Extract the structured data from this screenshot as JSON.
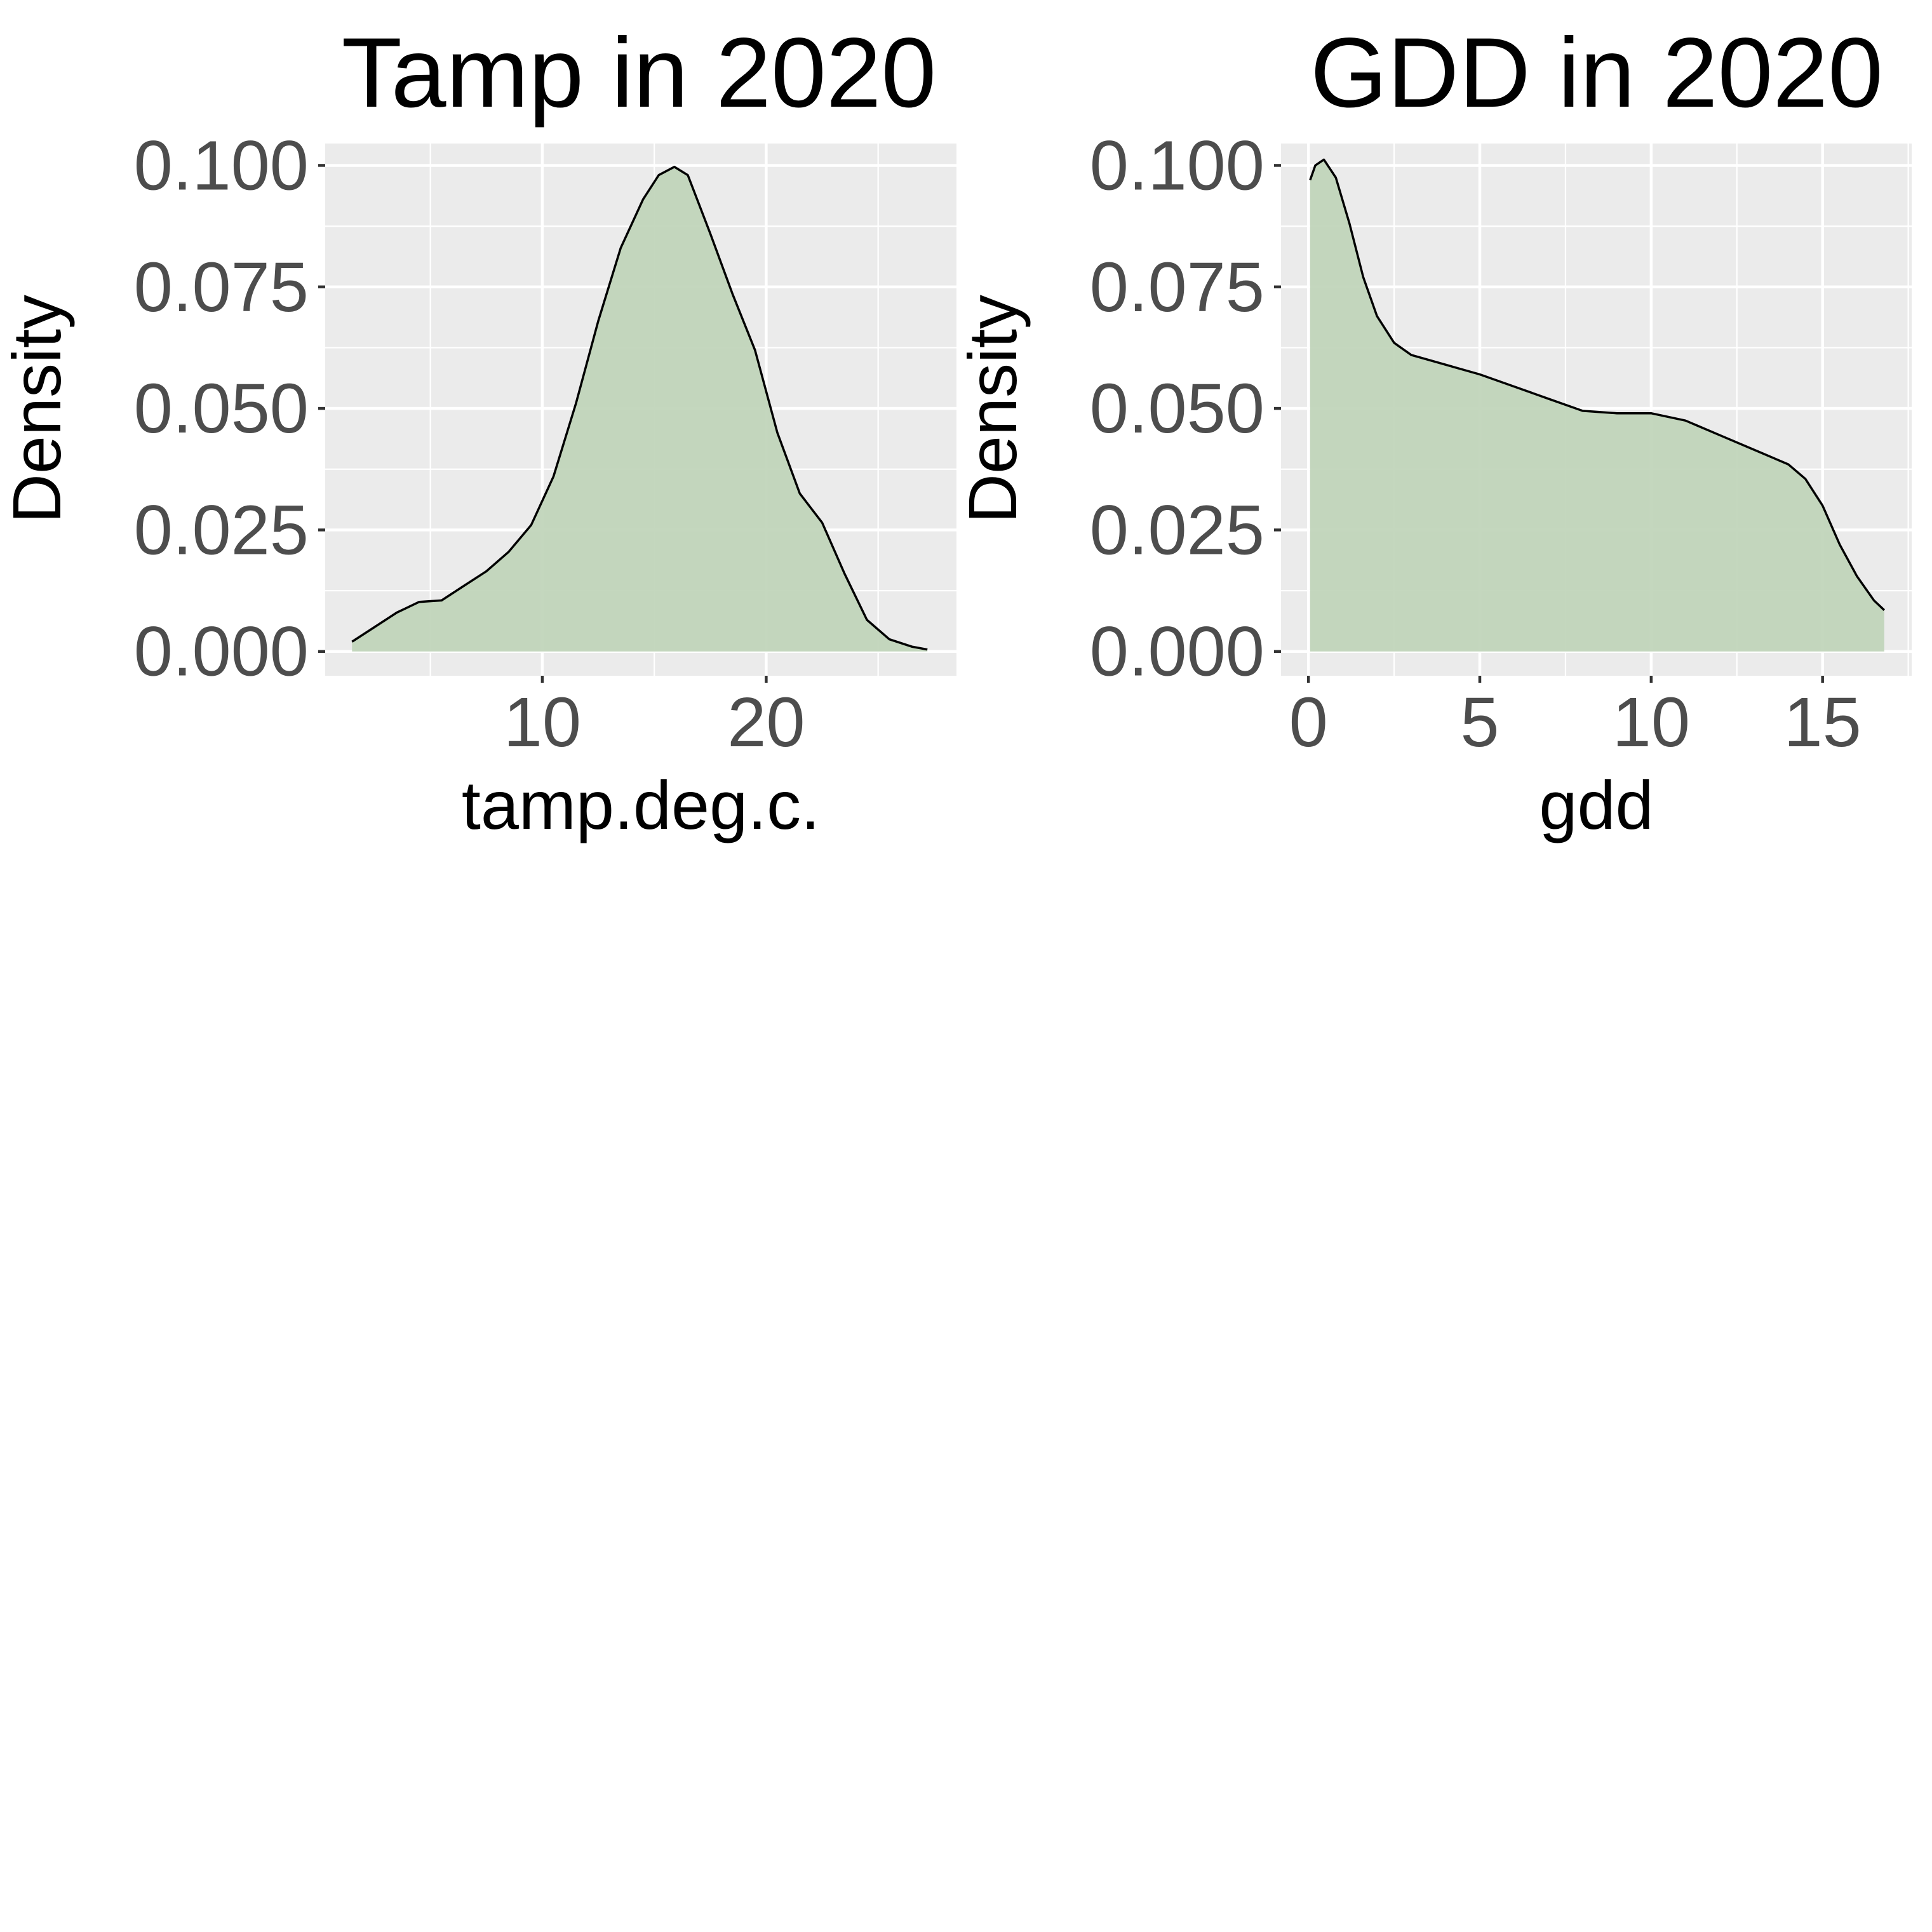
{
  "colors": {
    "fill": "#bfd4b8",
    "panel_background": "#ebebeb",
    "grid": "#ffffff",
    "line": "#000000",
    "tick_text": "#4d4d4d"
  },
  "chart_data": [
    {
      "type": "area",
      "title": "Tamp in 2020",
      "xlabel": "tamp.deg.c.",
      "ylabel": "Density",
      "xlim": [
        0.3,
        28.5
      ],
      "ylim": [
        -0.005,
        0.1045
      ],
      "x_ticks": [
        10,
        20
      ],
      "x_tick_labels": [
        "10",
        "20"
      ],
      "x_minor_ticks": [
        5,
        15,
        25
      ],
      "y_ticks": [
        0,
        0.025,
        0.05,
        0.075,
        0.1
      ],
      "y_tick_labels": [
        "0.000",
        "0.025",
        "0.050",
        "0.075",
        "0.100"
      ],
      "y_minor_ticks": [
        0.0125,
        0.0375,
        0.0625,
        0.0875
      ],
      "grid": true,
      "legend": "none",
      "series": [
        {
          "x": [
            1.5,
            2.5,
            3.5,
            4.5,
            5.5,
            6.5,
            7.5,
            8.5,
            9.5,
            10.5,
            11.5,
            12.5,
            13.5,
            14.5,
            15.2,
            15.9,
            16.5,
            17.5,
            18.5,
            19.5,
            20.5,
            21.5,
            22.5,
            23.5,
            24.5,
            25.5,
            26.5,
            27.2
          ],
          "y": [
            0.002,
            0.005,
            0.008,
            0.0102,
            0.0105,
            0.0135,
            0.0165,
            0.0205,
            0.026,
            0.036,
            0.051,
            0.068,
            0.083,
            0.093,
            0.098,
            0.0997,
            0.098,
            0.086,
            0.0735,
            0.062,
            0.045,
            0.0325,
            0.0265,
            0.016,
            0.0065,
            0.0025,
            0.001,
            0.0004
          ]
        }
      ]
    },
    {
      "type": "area",
      "title": "GDD in 2020",
      "xlabel": "gdd",
      "ylabel": "Density",
      "xlim": [
        -0.8,
        17.6
      ],
      "ylim": [
        -0.005,
        0.1045
      ],
      "x_ticks": [
        0,
        5,
        10,
        15
      ],
      "x_tick_labels": [
        "0",
        "5",
        "10",
        "15"
      ],
      "x_minor_ticks": [
        2.5,
        7.5,
        12.5,
        17.5
      ],
      "y_ticks": [
        0,
        0.025,
        0.05,
        0.075,
        0.1
      ],
      "y_tick_labels": [
        "0.000",
        "0.025",
        "0.050",
        "0.075",
        "0.100"
      ],
      "y_minor_ticks": [
        0.0125,
        0.0375,
        0.0625,
        0.0875
      ],
      "grid": true,
      "legend": "none",
      "series": [
        {
          "x": [
            0.05,
            0.2,
            0.45,
            0.8,
            1.2,
            1.6,
            2.0,
            2.5,
            3.0,
            4.0,
            5.0,
            6.0,
            7.0,
            8.0,
            9.0,
            10.0,
            11.0,
            12.0,
            13.0,
            14.0,
            14.5,
            15.0,
            15.5,
            16.0,
            16.5,
            16.8
          ],
          "y": [
            0.097,
            0.1,
            0.1012,
            0.0975,
            0.088,
            0.077,
            0.069,
            0.0635,
            0.061,
            0.059,
            0.057,
            0.0545,
            0.052,
            0.0495,
            0.049,
            0.049,
            0.0475,
            0.0445,
            0.0415,
            0.0385,
            0.0355,
            0.03,
            0.022,
            0.0155,
            0.0105,
            0.0085
          ]
        }
      ]
    }
  ]
}
